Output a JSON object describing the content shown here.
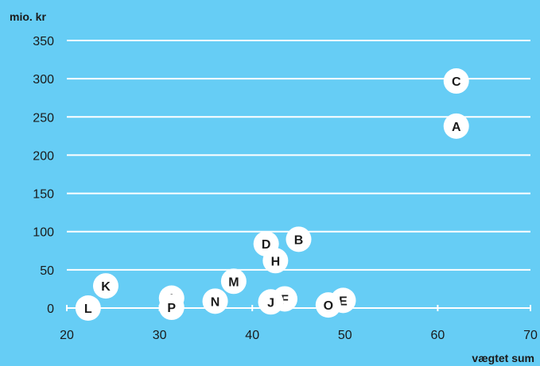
{
  "chart_data": {
    "type": "scatter",
    "ylabel": "mio. kr",
    "xlabel": "vægtet sum",
    "xlim": [
      20,
      70
    ],
    "ylim": [
      0,
      350
    ],
    "x_ticks": [
      20,
      30,
      40,
      50,
      60,
      70
    ],
    "y_ticks": [
      0,
      50,
      100,
      150,
      200,
      250,
      300,
      350
    ],
    "grid": "horizontal",
    "points": [
      {
        "label": "A",
        "x": 62,
        "y": 238
      },
      {
        "label": "B",
        "x": 45,
        "y": 90
      },
      {
        "label": "C",
        "x": 62,
        "y": 297
      },
      {
        "label": "D",
        "x": 41.5,
        "y": 84
      },
      {
        "label": "E",
        "x": 49.8,
        "y": 10
      },
      {
        "label": "F",
        "x": 43.5,
        "y": 12
      },
      {
        "label": "H",
        "x": 42.5,
        "y": 62
      },
      {
        "label": "I",
        "x": 31.3,
        "y": 13
      },
      {
        "label": "J",
        "x": 42,
        "y": 8
      },
      {
        "label": "K",
        "x": 24.2,
        "y": 29
      },
      {
        "label": "L",
        "x": 22.3,
        "y": 0
      },
      {
        "label": "M",
        "x": 38,
        "y": 35
      },
      {
        "label": "N",
        "x": 36,
        "y": 9
      },
      {
        "label": "O",
        "x": 48.2,
        "y": 4
      },
      {
        "label": "P",
        "x": 31.3,
        "y": 1
      }
    ],
    "colors": {
      "background": "#66cdf5",
      "gridline": "#ffffff",
      "marker_fill": "#ffffff",
      "text": "#1a1a1a"
    }
  }
}
